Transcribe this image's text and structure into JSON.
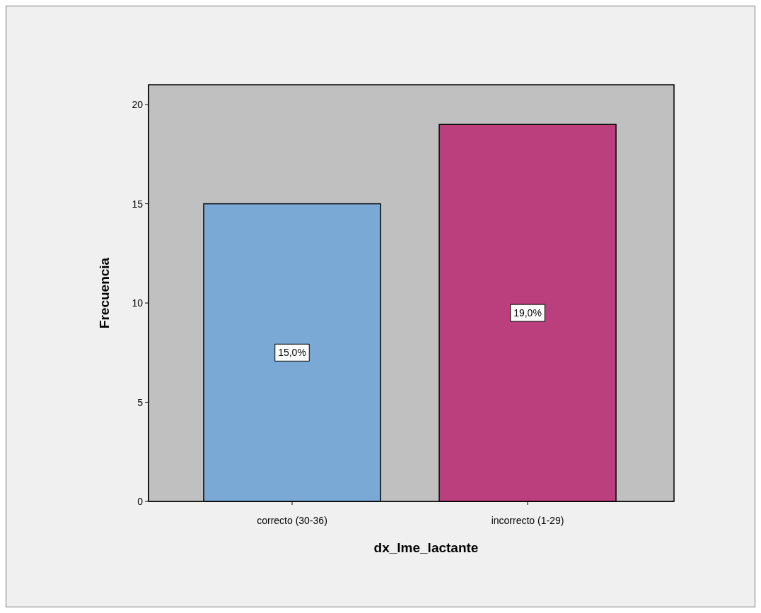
{
  "chart_data": {
    "type": "bar",
    "xlabel": "dx_lme_lactante",
    "ylabel": "Frecuencia",
    "categories": [
      "correcto (30-36)",
      "incorrecto (1-29)"
    ],
    "values": [
      15,
      19
    ],
    "colors": [
      "#7ba9d6",
      "#bb3f7c"
    ],
    "value_labels": [
      "15,0%",
      "19,0%"
    ],
    "ylim": [
      0,
      21
    ],
    "yticks": [
      0,
      5,
      10,
      15,
      20
    ]
  }
}
